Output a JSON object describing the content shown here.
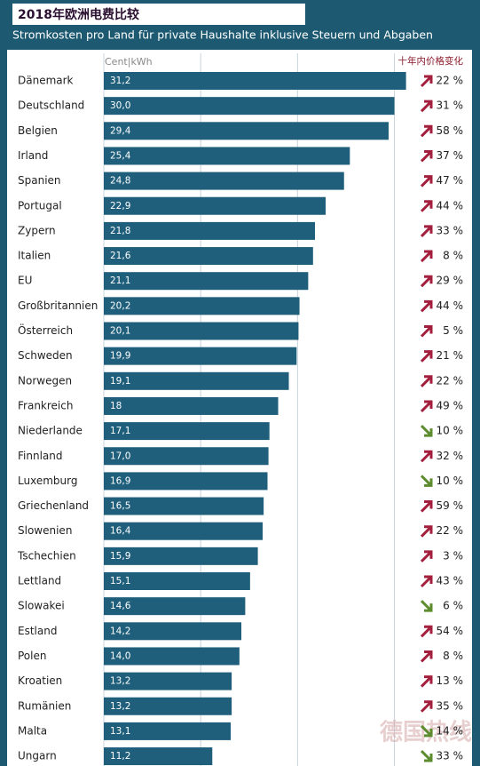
{
  "chart_data": {
    "type": "bar",
    "orientation": "horizontal",
    "title": "2018年欧洲电费比较",
    "subtitle": "Stromkosten pro Land für private Haushalte inklusive Steuern und Abgaben",
    "xlabel": "Cent|kWh",
    "watermark": "德国热线",
    "categories": [
      "Dänemark",
      "Deutschland",
      "Belgien",
      "Irland",
      "Spanien",
      "Portugal",
      "Zypern",
      "Italien",
      "EU",
      "Großbritannien",
      "Österreich",
      "Schweden",
      "Norwegen",
      "Frankreich",
      "Niederlande",
      "Finnland",
      "Luxemburg",
      "Griechenland",
      "Slowenien",
      "Tschechien",
      "Lettland",
      "Slowakei",
      "Estland",
      "Polen",
      "Kroatien",
      "Rumänien",
      "Malta",
      "Ungarn"
    ],
    "values": [
      31.2,
      30.0,
      29.4,
      25.4,
      24.8,
      22.9,
      21.8,
      21.6,
      21.1,
      20.2,
      20.1,
      19.9,
      19.1,
      18,
      17.1,
      17.0,
      16.9,
      16.5,
      16.4,
      15.9,
      15.1,
      14.6,
      14.2,
      14.0,
      13.2,
      13.2,
      13.1,
      11.2
    ],
    "value_labels": [
      "31,2",
      "30,0",
      "29,4",
      "25,4",
      "24,8",
      "22,9",
      "21,8",
      "21,6",
      "21,1",
      "20,2",
      "20,1",
      "19,9",
      "19,1",
      "18",
      "17,1",
      "17,0",
      "16,9",
      "16,5",
      "16,4",
      "15,9",
      "15,1",
      "14,6",
      "14,2",
      "14,0",
      "13,2",
      "13,2",
      "13,1",
      "11,2"
    ],
    "color": "#1f5f7b",
    "xlim": [
      0,
      31.6
    ],
    "xticks": [
      0,
      10,
      20,
      30
    ],
    "grid": true,
    "change": {
      "title": "十年内价格变化",
      "values": [
        22,
        31,
        58,
        37,
        47,
        44,
        33,
        8,
        29,
        44,
        5,
        21,
        22,
        49,
        -10,
        32,
        -10,
        59,
        22,
        3,
        43,
        -6,
        54,
        8,
        13,
        35,
        -14,
        -33
      ],
      "value_labels": [
        "22 %",
        "31 %",
        "58 %",
        "37 %",
        "47 %",
        "44 %",
        "33 %",
        "8 %",
        "29 %",
        "44 %",
        "5 %",
        "21 %",
        "22 %",
        "49 %",
        "10 %",
        "32 %",
        "10 %",
        "59 %",
        "22 %",
        "3 %",
        "43 %",
        "6 %",
        "54 %",
        "8 %",
        "13 %",
        "35 %",
        "14 %",
        "33 %"
      ],
      "up_color": "#a31f3d",
      "down_color": "#5d8c2e"
    }
  }
}
